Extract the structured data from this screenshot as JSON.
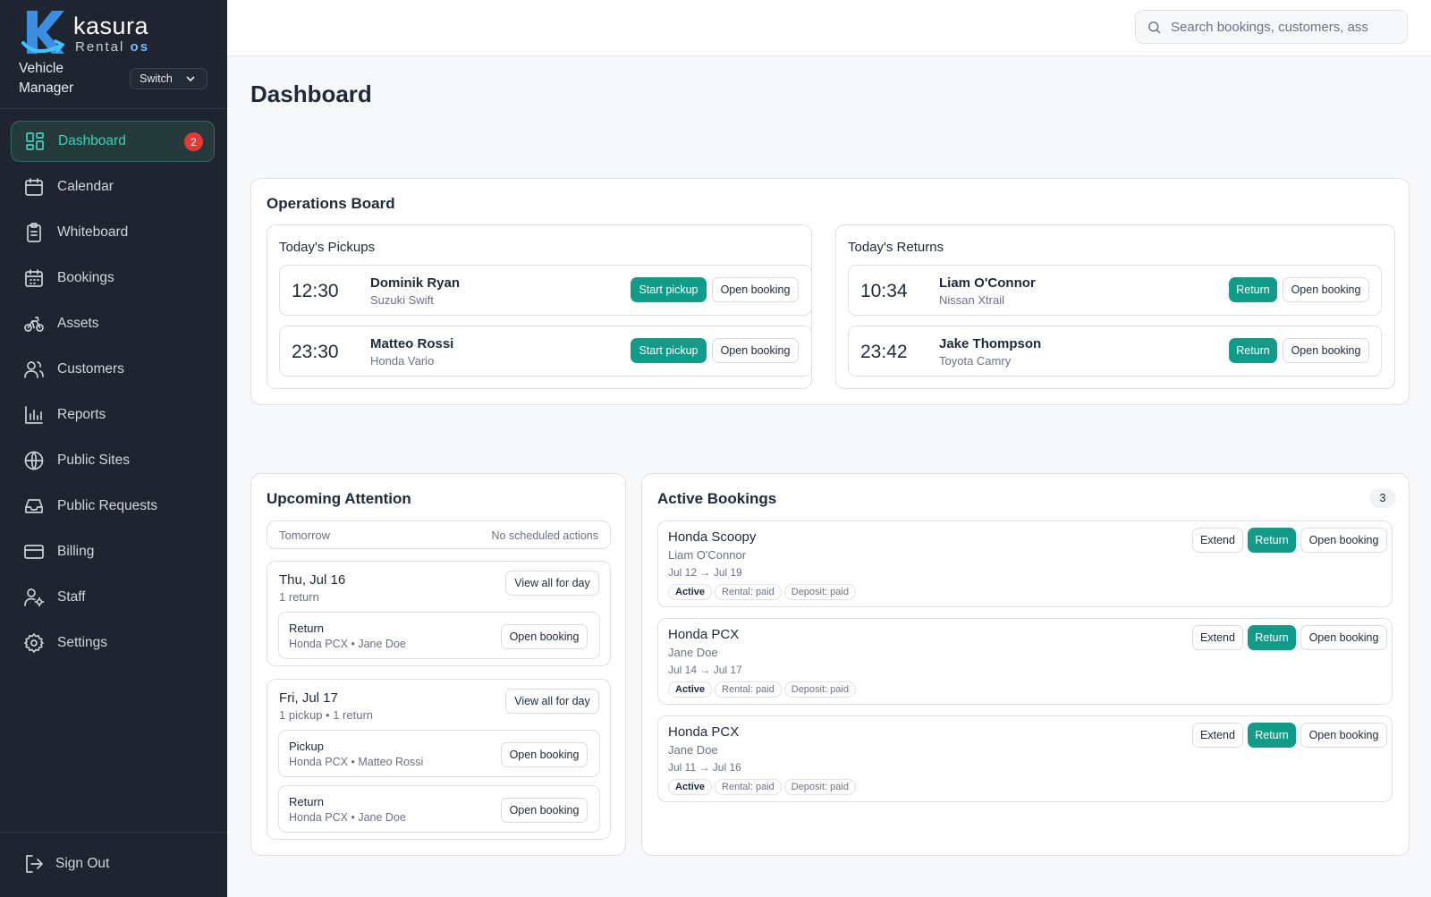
{
  "brand": {
    "name": "kasura",
    "sub_prefix": "Rental",
    "sub_suffix": "os"
  },
  "sidebar": {
    "role": "Vehicle Manager",
    "switch_label": "Switch",
    "items": [
      {
        "label": "Dashboard",
        "icon": "dashboard-icon",
        "badge": "2",
        "active": true
      },
      {
        "label": "Calendar",
        "icon": "calendar-icon"
      },
      {
        "label": "Whiteboard",
        "icon": "clipboard-icon"
      },
      {
        "label": "Bookings",
        "icon": "bookings-icon"
      },
      {
        "label": "Assets",
        "icon": "bicycle-icon"
      },
      {
        "label": "Customers",
        "icon": "users-icon"
      },
      {
        "label": "Reports",
        "icon": "bar-chart-icon"
      },
      {
        "label": "Public Sites",
        "icon": "globe-icon"
      },
      {
        "label": "Public Requests",
        "icon": "inbox-icon"
      },
      {
        "label": "Billing",
        "icon": "credit-card-icon"
      },
      {
        "label": "Staff",
        "icon": "staff-icon"
      },
      {
        "label": "Settings",
        "icon": "gear-icon"
      }
    ],
    "sign_out": "Sign Out"
  },
  "header": {
    "search_placeholder": "Search bookings, customers, assets"
  },
  "page": {
    "title": "Dashboard"
  },
  "ops": {
    "title": "Operations Board",
    "pickups": {
      "title": "Today's Pickups",
      "rows": [
        {
          "time": "12:30",
          "name": "Dominik Ryan",
          "vehicle": "Suzuki Swift",
          "action": "Start pickup",
          "open": "Open booking"
        },
        {
          "time": "23:30",
          "name": "Matteo Rossi",
          "vehicle": "Honda Vario",
          "action": "Start pickup",
          "open": "Open booking"
        }
      ]
    },
    "returns": {
      "title": "Today's Returns",
      "rows": [
        {
          "time": "10:34",
          "name": "Liam O'Connor",
          "vehicle": "Nissan Xtrail",
          "action": "Return",
          "open": "Open booking"
        },
        {
          "time": "23:42",
          "name": "Jake Thompson",
          "vehicle": "Toyota Camry",
          "action": "Return",
          "open": "Open booking"
        }
      ]
    }
  },
  "attention": {
    "title": "Upcoming Attention",
    "tomorrow": {
      "label": "Tomorrow",
      "note": "No scheduled actions"
    },
    "days": [
      {
        "date": "Thu, Jul 16",
        "summary": "1 return",
        "view": "View all for day",
        "items": [
          {
            "type": "Return",
            "detail": "Honda PCX • Jane Doe",
            "open": "Open booking"
          }
        ]
      },
      {
        "date": "Fri, Jul 17",
        "summary": "1 pickup • 1 return",
        "view": "View all for day",
        "items": [
          {
            "type": "Pickup",
            "detail": "Honda PCX • Matteo Rossi",
            "open": "Open booking"
          },
          {
            "type": "Return",
            "detail": "Honda PCX • Jane Doe",
            "open": "Open booking"
          }
        ]
      }
    ]
  },
  "active": {
    "title": "Active Bookings",
    "count": "3",
    "rows": [
      {
        "vehicle": "Honda Scoopy",
        "customer": "Liam O'Connor",
        "dates": "Jul 12 → Jul 19",
        "status": "Active",
        "rental": "Rental: paid",
        "deposit": "Deposit: paid",
        "extend": "Extend",
        "ret": "Return",
        "open": "Open booking"
      },
      {
        "vehicle": "Honda PCX",
        "customer": "Jane Doe",
        "dates": "Jul 14 → Jul 17",
        "status": "Active",
        "rental": "Rental: paid",
        "deposit": "Deposit: paid",
        "extend": "Extend",
        "ret": "Return",
        "open": "Open booking"
      },
      {
        "vehicle": "Honda PCX",
        "customer": "Jane Doe",
        "dates": "Jul 11 → Jul 16",
        "status": "Active",
        "rental": "Rental: paid",
        "deposit": "Deposit: paid",
        "extend": "Extend",
        "ret": "Return",
        "open": "Open booking"
      }
    ]
  },
  "colors": {
    "accent": "#139b8a",
    "sidebar_bg": "#1e2530",
    "active_text": "#3fd1b8",
    "badge": "#e53935"
  }
}
